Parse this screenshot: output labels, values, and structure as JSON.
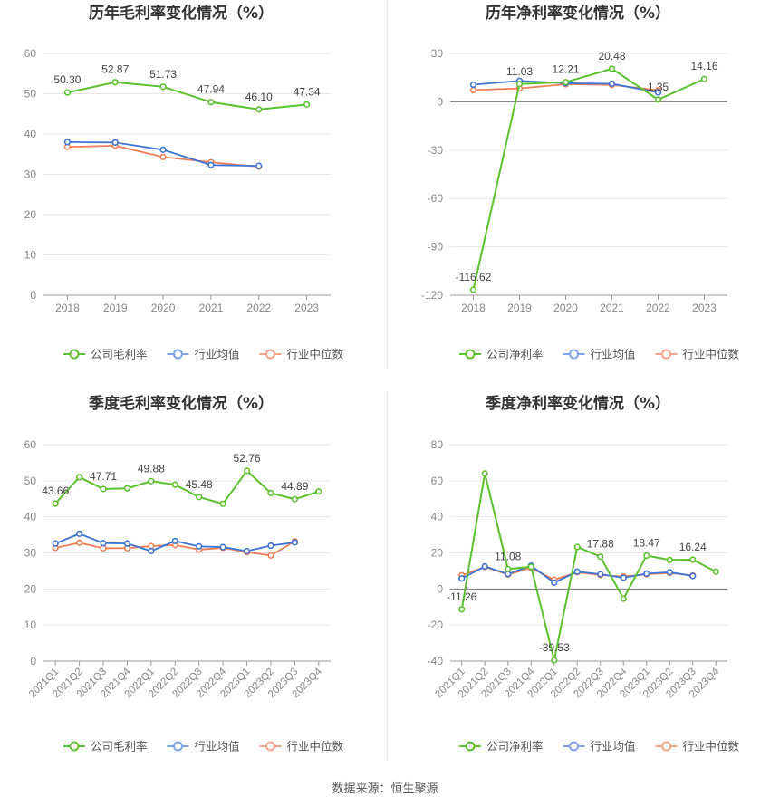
{
  "footer": {
    "source": "数据来源：恒生聚源"
  },
  "colors": {
    "company": "#5bc12f",
    "industry_avg": "#3d74d6",
    "industry_median": "#f07f55",
    "grid": "#e6e6e6",
    "axis": "#999999"
  },
  "chart_data": [
    {
      "type": "line",
      "title": "历年毛利率变化情况（%）",
      "categories": [
        "2018",
        "2019",
        "2020",
        "2021",
        "2022",
        "2023"
      ],
      "ylim": [
        0,
        60
      ],
      "yticks": [
        0,
        10,
        20,
        30,
        40,
        50,
        60
      ],
      "grid": true,
      "legend": "bottom",
      "series": [
        {
          "name": "公司毛利率",
          "values": [
            50.3,
            52.87,
            51.73,
            47.94,
            46.1,
            47.34
          ],
          "labels": [
            "50.30",
            "52.87",
            "51.73",
            "47.94",
            "46.10",
            "47.34"
          ]
        },
        {
          "name": "行业均值",
          "values": [
            38.0,
            37.9,
            36.1,
            32.3,
            32.1,
            null
          ]
        },
        {
          "name": "行业中位数",
          "values": [
            36.8,
            37.1,
            34.3,
            33.0,
            31.9,
            null
          ]
        }
      ]
    },
    {
      "type": "line",
      "title": "历年净利率变化情况（%）",
      "categories": [
        "2018",
        "2019",
        "2020",
        "2021",
        "2022",
        "2023"
      ],
      "ylim": [
        -120,
        30
      ],
      "yticks": [
        -120,
        -90,
        -60,
        -30,
        0,
        30
      ],
      "grid": true,
      "legend": "bottom",
      "series": [
        {
          "name": "公司净利率",
          "values": [
            -116.62,
            11.03,
            12.21,
            20.48,
            1.35,
            14.16
          ],
          "labels": [
            "-116.62",
            "11.03",
            "12.21",
            "20.48",
            "1.35",
            "14.16"
          ]
        },
        {
          "name": "行业均值",
          "values": [
            10.6,
            13.0,
            11.5,
            11.2,
            5.8,
            null
          ]
        },
        {
          "name": "行业中位数",
          "values": [
            7.3,
            8.3,
            10.9,
            10.5,
            7.2,
            null
          ]
        }
      ]
    },
    {
      "type": "line",
      "title": "季度毛利率变化情况（%）",
      "categories": [
        "2021Q1",
        "2021Q2",
        "2021Q3",
        "2021Q4",
        "2022Q1",
        "2022Q2",
        "2022Q3",
        "2022Q4",
        "2023Q1",
        "2023Q2",
        "2023Q3",
        "2023Q4"
      ],
      "ylim": [
        0,
        60
      ],
      "yticks": [
        0,
        10,
        20,
        30,
        40,
        50,
        60
      ],
      "grid": true,
      "legend": "bottom",
      "series": [
        {
          "name": "公司毛利率",
          "values": [
            43.66,
            51.0,
            47.71,
            47.9,
            49.88,
            48.9,
            45.48,
            43.6,
            52.76,
            46.6,
            44.89,
            47.0
          ],
          "labels": [
            "43.66",
            "",
            "47.71",
            "",
            "49.88",
            "",
            "45.48",
            "",
            "52.76",
            "",
            "44.89",
            ""
          ]
        },
        {
          "name": "行业均值",
          "values": [
            32.6,
            35.3,
            32.7,
            32.6,
            30.5,
            33.3,
            31.8,
            31.6,
            30.5,
            32.0,
            32.9,
            null
          ]
        },
        {
          "name": "行业中位数",
          "values": [
            31.4,
            32.8,
            31.3,
            31.3,
            31.9,
            32.2,
            30.9,
            31.4,
            30.2,
            29.3,
            33.2,
            null
          ]
        }
      ]
    },
    {
      "type": "line",
      "title": "季度净利率变化情况（%）",
      "categories": [
        "2021Q1",
        "2021Q2",
        "2021Q3",
        "2021Q4",
        "2022Q1",
        "2022Q2",
        "2022Q3",
        "2022Q4",
        "2023Q1",
        "2023Q2",
        "2023Q3",
        "2023Q4"
      ],
      "ylim": [
        -40,
        80
      ],
      "yticks": [
        -40,
        -20,
        0,
        20,
        40,
        60,
        80
      ],
      "grid": true,
      "legend": "bottom",
      "series": [
        {
          "name": "公司净利率",
          "values": [
            -11.26,
            64.0,
            11.08,
            12.3,
            -39.53,
            23.3,
            17.88,
            -5.4,
            18.47,
            16.1,
            16.24,
            9.6
          ],
          "labels": [
            "-11.26",
            "",
            "11.08",
            "",
            "-39.53",
            "",
            "17.88",
            "",
            "18.47",
            "",
            "16.24",
            ""
          ]
        },
        {
          "name": "行业均值",
          "values": [
            5.8,
            12.5,
            8.3,
            12.9,
            3.5,
            9.6,
            8.2,
            6.2,
            8.5,
            9.3,
            7.2,
            null
          ]
        },
        {
          "name": "行业中位数",
          "values": [
            7.6,
            12.2,
            8.0,
            11.7,
            5.1,
            9.3,
            7.7,
            6.9,
            8.1,
            8.9,
            7.5,
            null
          ]
        }
      ]
    }
  ]
}
